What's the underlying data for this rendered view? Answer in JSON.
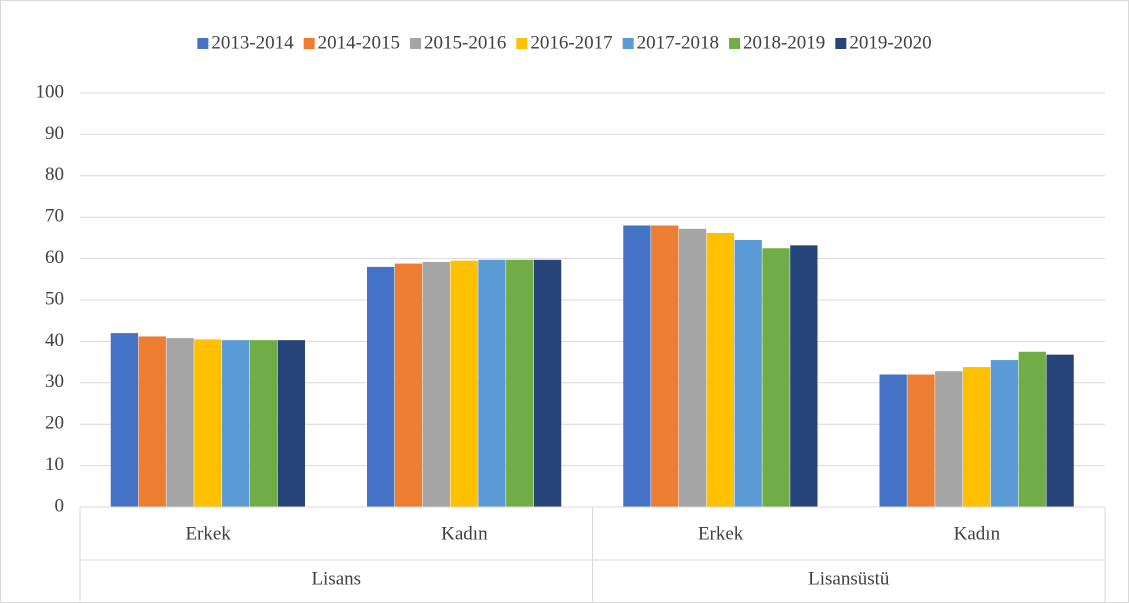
{
  "chart_data": {
    "type": "bar",
    "categories": [
      "Erkek",
      "Kadın",
      "Erkek",
      "Kadın"
    ],
    "groups": [
      "Lisans",
      "Lisansüstü"
    ],
    "series": [
      {
        "name": "2013-2014",
        "color": "#4472c4",
        "values": [
          42,
          58,
          68,
          32
        ]
      },
      {
        "name": "2014-2015",
        "color": "#ed7d31",
        "values": [
          41.2,
          58.8,
          68,
          32
        ]
      },
      {
        "name": "2015-2016",
        "color": "#a5a5a5",
        "values": [
          40.8,
          59.2,
          67.2,
          32.8
        ]
      },
      {
        "name": "2016-2017",
        "color": "#ffc000",
        "values": [
          40.5,
          59.5,
          66.2,
          33.8
        ]
      },
      {
        "name": "2017-2018",
        "color": "#5b9bd5",
        "values": [
          40.3,
          59.7,
          64.5,
          35.5
        ]
      },
      {
        "name": "2018-2019",
        "color": "#70ad47",
        "values": [
          40.3,
          59.7,
          62.5,
          37.5
        ]
      },
      {
        "name": "2019-2020",
        "color": "#264478",
        "values": [
          40.3,
          59.7,
          63.2,
          36.8
        ]
      }
    ],
    "ylim": [
      0,
      100
    ],
    "yticks": [
      0,
      10,
      20,
      30,
      40,
      50,
      60,
      70,
      80,
      90,
      100
    ],
    "grid": true,
    "legend": "top"
  }
}
